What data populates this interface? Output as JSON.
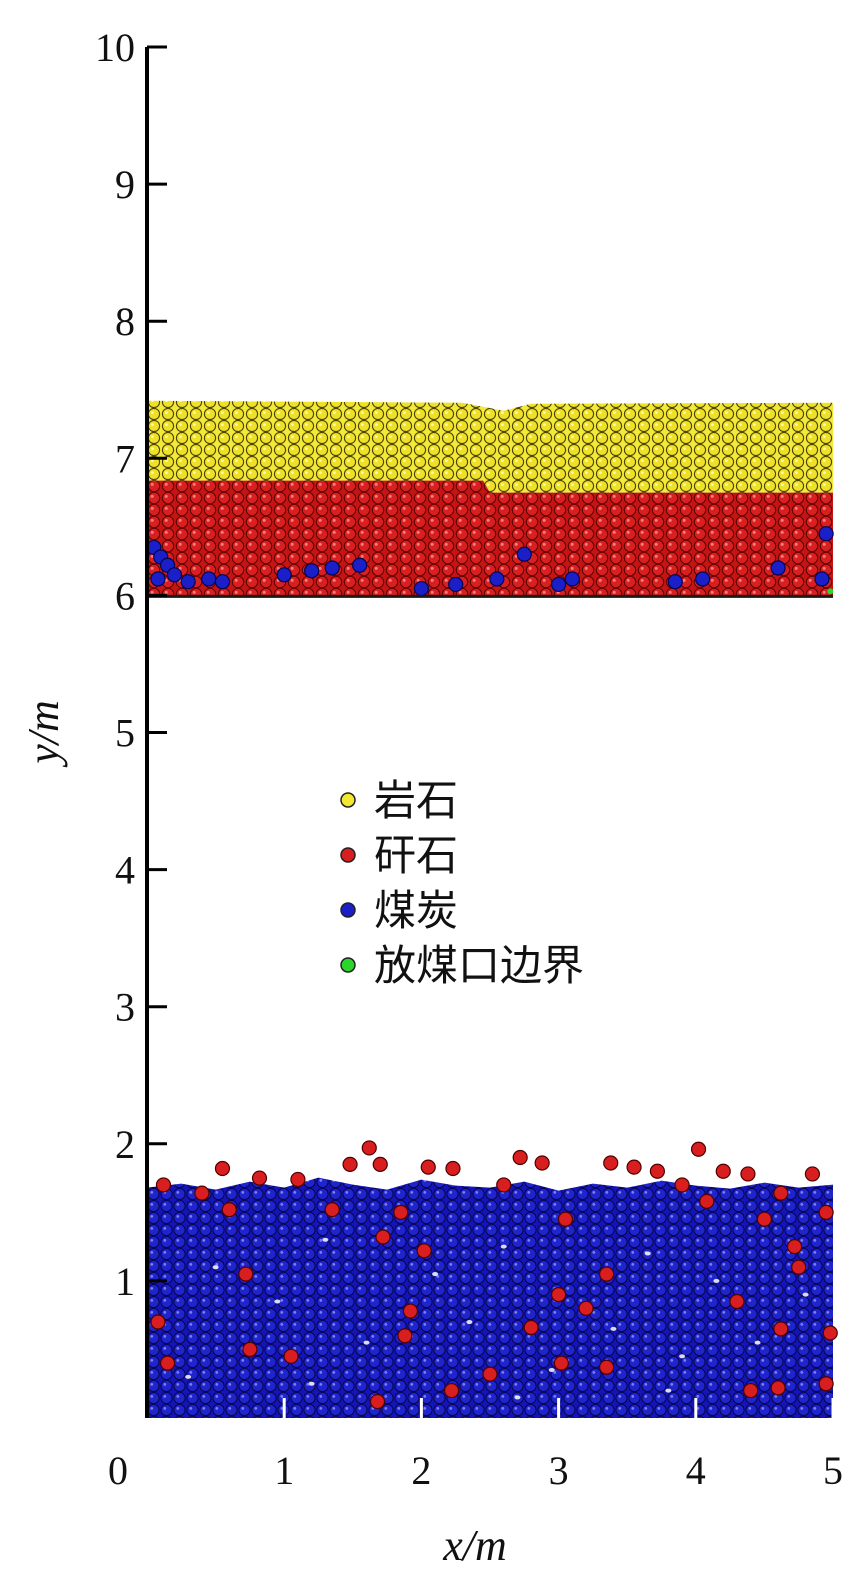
{
  "chart_data": {
    "type": "scatter",
    "title": "",
    "xlabel": "x/m",
    "ylabel": "y/m",
    "xlim": [
      0,
      5
    ],
    "ylim": [
      0,
      10
    ],
    "xticks": [
      "0",
      "1",
      "2",
      "3",
      "4",
      "5"
    ],
    "yticks": [
      "0",
      "1",
      "2",
      "3",
      "4",
      "5",
      "6",
      "7",
      "8",
      "9",
      "10"
    ],
    "grid": false,
    "legend_position": "center",
    "series": [
      {
        "name": "岩石",
        "color": "#f2e830",
        "region": {
          "x": [
            0,
            5
          ],
          "y_bottom": 6.75,
          "y_top": 7.42
        }
      },
      {
        "name": "矸石",
        "color": "#d81e1e",
        "region": {
          "x": [
            0,
            5
          ],
          "y_bottom": 6.0,
          "y_top": 6.75
        },
        "scattered_in_coal": [
          [
            1.62,
            1.97
          ],
          [
            1.48,
            1.85
          ],
          [
            1.7,
            1.85
          ],
          [
            2.05,
            1.83
          ],
          [
            2.23,
            1.82
          ],
          [
            2.72,
            1.9
          ],
          [
            2.88,
            1.86
          ],
          [
            3.38,
            1.86
          ],
          [
            3.55,
            1.83
          ],
          [
            3.72,
            1.8
          ],
          [
            4.02,
            1.96
          ],
          [
            4.2,
            1.8
          ],
          [
            4.38,
            1.78
          ],
          [
            4.62,
            1.64
          ],
          [
            4.85,
            1.78
          ],
          [
            0.55,
            1.82
          ],
          [
            0.82,
            1.75
          ],
          [
            1.1,
            1.74
          ],
          [
            0.12,
            1.7
          ],
          [
            0.4,
            1.64
          ],
          [
            4.5,
            1.45
          ],
          [
            4.72,
            1.25
          ],
          [
            4.95,
            1.5
          ],
          [
            1.85,
            1.5
          ],
          [
            1.72,
            1.32
          ],
          [
            2.02,
            1.22
          ],
          [
            0.6,
            1.52
          ],
          [
            3.05,
            1.45
          ],
          [
            4.08,
            1.58
          ],
          [
            4.75,
            1.1
          ],
          [
            0.08,
            0.7
          ],
          [
            0.72,
            1.05
          ],
          [
            1.92,
            0.78
          ],
          [
            1.88,
            0.6
          ],
          [
            2.8,
            0.66
          ],
          [
            3.0,
            0.9
          ],
          [
            3.2,
            0.8
          ],
          [
            3.35,
            1.05
          ],
          [
            4.3,
            0.85
          ],
          [
            4.62,
            0.65
          ],
          [
            0.15,
            0.4
          ],
          [
            0.75,
            0.5
          ],
          [
            1.05,
            0.45
          ],
          [
            1.68,
            0.12
          ],
          [
            2.22,
            0.2
          ],
          [
            2.5,
            0.32
          ],
          [
            3.02,
            0.4
          ],
          [
            3.35,
            0.37
          ],
          [
            4.4,
            0.2
          ],
          [
            4.6,
            0.22
          ],
          [
            4.95,
            0.25
          ],
          [
            4.98,
            0.62
          ],
          [
            1.35,
            1.52
          ],
          [
            2.6,
            1.7
          ],
          [
            3.9,
            1.7
          ]
        ]
      },
      {
        "name": "煤炭",
        "color": "#1a1fc8",
        "region": {
          "x": [
            0,
            5
          ],
          "y_bottom": 0,
          "y_top": 1.68
        },
        "scattered_in_gangue": [
          [
            0.05,
            6.35
          ],
          [
            0.1,
            6.28
          ],
          [
            0.15,
            6.22
          ],
          [
            0.08,
            6.12
          ],
          [
            0.2,
            6.15
          ],
          [
            0.3,
            6.1
          ],
          [
            0.45,
            6.12
          ],
          [
            0.55,
            6.1
          ],
          [
            1.0,
            6.15
          ],
          [
            1.2,
            6.18
          ],
          [
            1.35,
            6.2
          ],
          [
            1.55,
            6.22
          ],
          [
            2.0,
            6.05
          ],
          [
            2.25,
            6.08
          ],
          [
            2.55,
            6.12
          ],
          [
            2.75,
            6.3
          ],
          [
            3.0,
            6.08
          ],
          [
            3.1,
            6.12
          ],
          [
            3.85,
            6.1
          ],
          [
            4.05,
            6.12
          ],
          [
            4.6,
            6.2
          ],
          [
            4.92,
            6.12
          ],
          [
            4.95,
            6.45
          ]
        ]
      },
      {
        "name": "放煤口边界",
        "color": "#2ad62a"
      }
    ]
  }
}
